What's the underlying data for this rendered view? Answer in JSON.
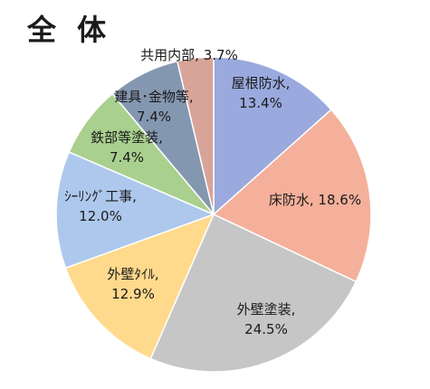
{
  "chart_data": {
    "type": "pie",
    "title": "全 体",
    "start_angle_deg": 0,
    "direction": "clockwise",
    "slices": [
      {
        "label": "屋根防水",
        "value": 13.4,
        "display": "屋根防水,\n13.4%",
        "color": "#9aa9de"
      },
      {
        "label": "床防水",
        "value": 18.6,
        "display": "床防水, 18.6%",
        "color": "#f4b09a"
      },
      {
        "label": "外壁塗装",
        "value": 24.5,
        "display": "外壁塗装,\n24.5%",
        "color": "#c6c6c6"
      },
      {
        "label": "外壁ﾀｲﾙ",
        "value": 12.9,
        "display": "外壁ﾀｲﾙ,\n12.9%",
        "color": "#ffd98c"
      },
      {
        "label": "ｼｰﾘﾝｸﾞ工事",
        "value": 12.0,
        "display": "ｼｰﾘﾝｸﾞ工事,\n12.0%",
        "color": "#adc8ec"
      },
      {
        "label": "鉄部等塗装",
        "value": 7.4,
        "display": "鉄部等塗装,\n7.4%",
        "color": "#a9d08e"
      },
      {
        "label": "建具･金物等",
        "value": 7.4,
        "display": "建具･金物等,\n7.4%",
        "color": "#8497b0"
      },
      {
        "label": "共用内部",
        "value": 3.7,
        "display": "共用内部, 3.7%",
        "color": "#d8a49a"
      }
    ]
  }
}
